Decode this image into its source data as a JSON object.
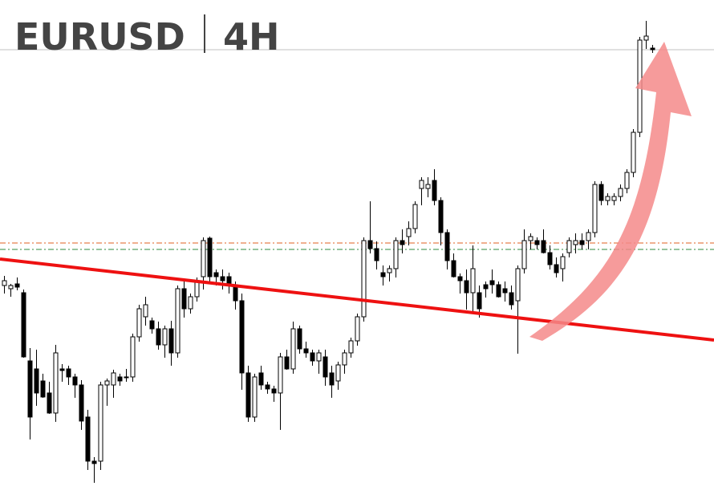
{
  "chart_data": {
    "type": "candlestick",
    "title": "EURUSD",
    "subtitle": "4H",
    "ylim": [
      0,
      606
    ],
    "up_color": "#ffffff",
    "down_color": "#000000",
    "wick_color": "#000000",
    "ohlc": [
      [
        250,
        262,
        240,
        256
      ],
      [
        246,
        252,
        236,
        250
      ],
      [
        252,
        260,
        244,
        248
      ],
      [
        241,
        245,
        160,
        161
      ],
      [
        156,
        172,
        58,
        86
      ],
      [
        146,
        170,
        100,
        116
      ],
      [
        131,
        140,
        110,
        111
      ],
      [
        116,
        130,
        90,
        91
      ],
      [
        91,
        176,
        80,
        166
      ],
      [
        146,
        152,
        130,
        144
      ],
      [
        146,
        150,
        126,
        136
      ],
      [
        136,
        140,
        110,
        126
      ],
      [
        126,
        132,
        70,
        81
      ],
      [
        86,
        95,
        20,
        31
      ],
      [
        31,
        36,
        4,
        28
      ],
      [
        31,
        130,
        20,
        126
      ],
      [
        126,
        134,
        100,
        131
      ],
      [
        126,
        145,
        110,
        141
      ],
      [
        136,
        140,
        125,
        131
      ],
      [
        136,
        146,
        130,
        136
      ],
      [
        136,
        190,
        130,
        186
      ],
      [
        186,
        226,
        180,
        221
      ],
      [
        211,
        236,
        200,
        226
      ],
      [
        206,
        210,
        190,
        196
      ],
      [
        196,
        205,
        170,
        176
      ],
      [
        176,
        200,
        160,
        196
      ],
      [
        196,
        206,
        150,
        166
      ],
      [
        166,
        250,
        160,
        246
      ],
      [
        246,
        256,
        210,
        221
      ],
      [
        221,
        240,
        215,
        236
      ],
      [
        236,
        260,
        230,
        256
      ],
      [
        261,
        310,
        245,
        306
      ],
      [
        309,
        311,
        255,
        261
      ],
      [
        266,
        270,
        250,
        261
      ],
      [
        261,
        270,
        245,
        256
      ],
      [
        261,
        266,
        240,
        251
      ],
      [
        251,
        255,
        220,
        231
      ],
      [
        231,
        240,
        120,
        141
      ],
      [
        141,
        150,
        80,
        86
      ],
      [
        86,
        140,
        80,
        136
      ],
      [
        141,
        150,
        120,
        126
      ],
      [
        126,
        130,
        115,
        121
      ],
      [
        121,
        125,
        105,
        116
      ],
      [
        116,
        166,
        70,
        161
      ],
      [
        161,
        170,
        145,
        146
      ],
      [
        146,
        205,
        140,
        196
      ],
      [
        196,
        200,
        165,
        171
      ],
      [
        171,
        180,
        160,
        166
      ],
      [
        166,
        170,
        150,
        156
      ],
      [
        156,
        170,
        140,
        166
      ],
      [
        161,
        170,
        125,
        136
      ],
      [
        141,
        150,
        110,
        126
      ],
      [
        131,
        155,
        120,
        151
      ],
      [
        151,
        170,
        140,
        166
      ],
      [
        166,
        185,
        160,
        181
      ],
      [
        181,
        215,
        175,
        211
      ],
      [
        211,
        310,
        205,
        306
      ],
      [
        306,
        355,
        290,
        296
      ],
      [
        296,
        305,
        270,
        281
      ],
      [
        266,
        275,
        250,
        261
      ],
      [
        266,
        275,
        255,
        271
      ],
      [
        271,
        310,
        260,
        306
      ],
      [
        306,
        320,
        290,
        301
      ],
      [
        311,
        330,
        300,
        321
      ],
      [
        321,
        355,
        315,
        351
      ],
      [
        371,
        385,
        350,
        381
      ],
      [
        371,
        385,
        360,
        376
      ],
      [
        381,
        395,
        350,
        356
      ],
      [
        356,
        360,
        300,
        316
      ],
      [
        316,
        320,
        270,
        281
      ],
      [
        281,
        290,
        260,
        261
      ],
      [
        261,
        265,
        240,
        256
      ],
      [
        256,
        270,
        220,
        241
      ],
      [
        241,
        300,
        215,
        271
      ],
      [
        241,
        250,
        210,
        221
      ],
      [
        251,
        255,
        235,
        246
      ],
      [
        256,
        270,
        240,
        251
      ],
      [
        251,
        255,
        235,
        236
      ],
      [
        246,
        255,
        230,
        241
      ],
      [
        241,
        250,
        220,
        226
      ],
      [
        231,
        275,
        165,
        271
      ],
      [
        271,
        320,
        265,
        306
      ],
      [
        306,
        315,
        295,
        311
      ],
      [
        306,
        310,
        295,
        301
      ],
      [
        306,
        320,
        290,
        291
      ],
      [
        291,
        300,
        270,
        276
      ],
      [
        276,
        285,
        260,
        266
      ],
      [
        271,
        290,
        255,
        286
      ],
      [
        291,
        310,
        285,
        306
      ],
      [
        301,
        315,
        290,
        306
      ],
      [
        306,
        315,
        295,
        301
      ],
      [
        306,
        320,
        295,
        316
      ],
      [
        316,
        380,
        310,
        376
      ],
      [
        376,
        380,
        350,
        356
      ],
      [
        356,
        365,
        350,
        361
      ],
      [
        356,
        365,
        350,
        361
      ],
      [
        361,
        376,
        355,
        371
      ],
      [
        371,
        395,
        365,
        391
      ],
      [
        391,
        445,
        385,
        441
      ],
      [
        441,
        560,
        435,
        556
      ],
      [
        556,
        580,
        545,
        561
      ],
      [
        546,
        550,
        540,
        544
      ]
    ],
    "levels": [
      {
        "value": 544,
        "color": "#c0c0c0"
      },
      {
        "value": 303,
        "color": "#e06020"
      },
      {
        "value": 295,
        "color": "#2e8b3e"
      }
    ],
    "trendline": {
      "start": 283,
      "end": 182,
      "color": "#ee1111"
    }
  }
}
